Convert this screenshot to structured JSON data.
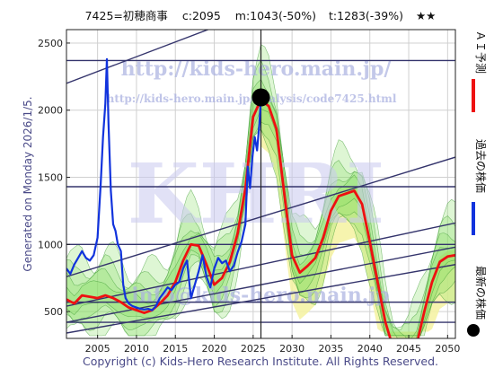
{
  "header": {
    "title": "7425=初穂商事",
    "current": "c:2095",
    "min": "m:1043(-50%)",
    "target": "t:1283(-39%)",
    "stars": "★★"
  },
  "side_left": "Generated on Monday 2026/1/5.",
  "footer": "Copyright (c) Kids-Hero Research Institute. All Rights Reserved.",
  "watermarks": {
    "big": "KHRI",
    "url_main": "http://kids-hero.main.jp/",
    "url_analysis": "http://kids-hero.main.jp/analysis/code7425.html",
    "mail": "info@kids-hero.main.jp"
  },
  "legend": {
    "ai": "ＡＩ予測",
    "past": "過去の株価",
    "latest": "最新の株価"
  },
  "colors": {
    "ai": "#ee1111",
    "past": "#1133dd",
    "latest": "#000000",
    "band_fill": "#88dd66",
    "forecast_fill": "#f4f2a0",
    "channel": "#34346c"
  },
  "chart_data": {
    "type": "line",
    "xlim": [
      2001,
      2051
    ],
    "ylim": [
      300,
      2600
    ],
    "x_ticks": [
      2005,
      2010,
      2015,
      2020,
      2025,
      2030,
      2035,
      2040,
      2045,
      2050
    ],
    "y_ticks": [
      500,
      1000,
      1500,
      2000,
      2500
    ],
    "grid": true,
    "current_marker": {
      "x": 2026.0,
      "y": 2095
    },
    "horizontal_levels": [
      420,
      570,
      1000,
      1430,
      2370
    ],
    "series": [
      {
        "name": "ＡＩ予測",
        "x": [
          2001,
          2002,
          2003,
          2004,
          2005,
          2006,
          2007,
          2008,
          2009,
          2010,
          2011,
          2012,
          2013,
          2014,
          2015,
          2016,
          2017,
          2018,
          2019,
          2020,
          2021,
          2022,
          2023,
          2024,
          2025,
          2026,
          2027,
          2028,
          2029,
          2030,
          2031,
          2032,
          2033,
          2034,
          2035,
          2036,
          2037,
          2038,
          2039,
          2040,
          2041,
          2042,
          2043,
          2044,
          2045,
          2046,
          2047,
          2048,
          2049,
          2050,
          2051
        ],
        "values": [
          590,
          560,
          620,
          610,
          600,
          620,
          600,
          570,
          530,
          510,
          490,
          510,
          560,
          620,
          720,
          880,
          1000,
          990,
          850,
          700,
          750,
          870,
          1080,
          1420,
          1950,
          2080,
          2030,
          1860,
          1380,
          920,
          790,
          840,
          900,
          1050,
          1250,
          1360,
          1380,
          1400,
          1300,
          1020,
          720,
          420,
          230,
          130,
          100,
          250,
          500,
          720,
          870,
          910,
          920
        ]
      },
      {
        "name": "過去の株価",
        "x": [
          2001.0,
          2001.5,
          2002.0,
          2002.5,
          2003.0,
          2003.5,
          2004.0,
          2004.5,
          2005.0,
          2005.4,
          2005.7,
          2006.0,
          2006.2,
          2006.4,
          2006.7,
          2007.0,
          2007.3,
          2007.6,
          2008.0,
          2008.3,
          2008.6,
          2009.0,
          2009.5,
          2010.0,
          2010.5,
          2011.0,
          2011.5,
          2012.0,
          2012.5,
          2013.0,
          2013.5,
          2014.0,
          2014.5,
          2015.0,
          2015.5,
          2016.0,
          2016.5,
          2017.0,
          2017.5,
          2018.0,
          2018.5,
          2019.0,
          2019.5,
          2020.0,
          2020.5,
          2021.0,
          2021.5,
          2022.0,
          2022.5,
          2023.0,
          2023.5,
          2024.0,
          2024.3,
          2024.6,
          2024.9,
          2025.2,
          2025.5,
          2025.8,
          2026.0
        ],
        "values": [
          820,
          780,
          850,
          900,
          950,
          900,
          880,
          920,
          1050,
          1450,
          1800,
          2050,
          2380,
          1900,
          1400,
          1150,
          1100,
          1000,
          950,
          700,
          600,
          560,
          540,
          530,
          520,
          515,
          520,
          510,
          540,
          600,
          640,
          680,
          660,
          700,
          720,
          820,
          880,
          600,
          700,
          800,
          920,
          760,
          680,
          820,
          900,
          860,
          880,
          800,
          840,
          940,
          1020,
          1150,
          1580,
          1420,
          1650,
          1800,
          1700,
          1900,
          2095
        ]
      }
    ]
  }
}
